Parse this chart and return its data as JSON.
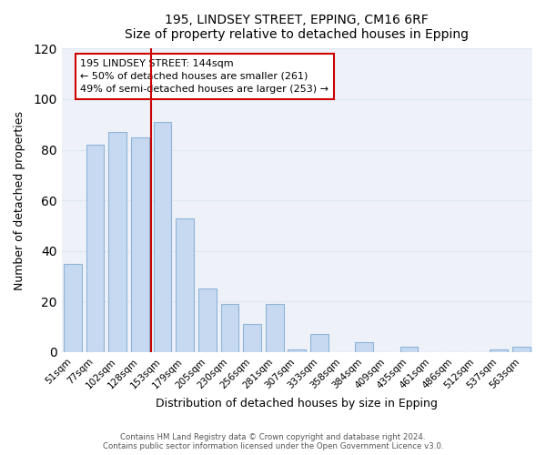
{
  "title": "195, LINDSEY STREET, EPPING, CM16 6RF",
  "subtitle": "Size of property relative to detached houses in Epping",
  "xlabel": "Distribution of detached houses by size in Epping",
  "ylabel": "Number of detached properties",
  "bar_labels": [
    "51sqm",
    "77sqm",
    "102sqm",
    "128sqm",
    "153sqm",
    "179sqm",
    "205sqm",
    "230sqm",
    "256sqm",
    "281sqm",
    "307sqm",
    "333sqm",
    "358sqm",
    "384sqm",
    "409sqm",
    "435sqm",
    "461sqm",
    "486sqm",
    "512sqm",
    "537sqm",
    "563sqm"
  ],
  "bar_heights": [
    35,
    82,
    87,
    85,
    91,
    53,
    25,
    19,
    11,
    19,
    1,
    7,
    0,
    4,
    0,
    2,
    0,
    0,
    0,
    1,
    2
  ],
  "bar_color": "#c6d9f0",
  "bar_edge_color": "#8fb4d9",
  "vline_color": "#cc0000",
  "vline_x": 3.5,
  "annotation_box_text": "195 LINDSEY STREET: 144sqm\n← 50% of detached houses are smaller (261)\n49% of semi-detached houses are larger (253) →",
  "annotation_box_color": "#ffffff",
  "annotation_box_edge_color": "#cc0000",
  "footer_line1": "Contains HM Land Registry data © Crown copyright and database right 2024.",
  "footer_line2": "Contains public sector information licensed under the Open Government Licence v3.0.",
  "ylim": [
    0,
    120
  ],
  "yticks": [
    0,
    20,
    40,
    60,
    80,
    100,
    120
  ],
  "grid_color": "#dce8f0",
  "background_color": "#eef2f8",
  "figure_background_color": "#ffffff",
  "figsize": [
    6.0,
    5.0
  ],
  "dpi": 100
}
